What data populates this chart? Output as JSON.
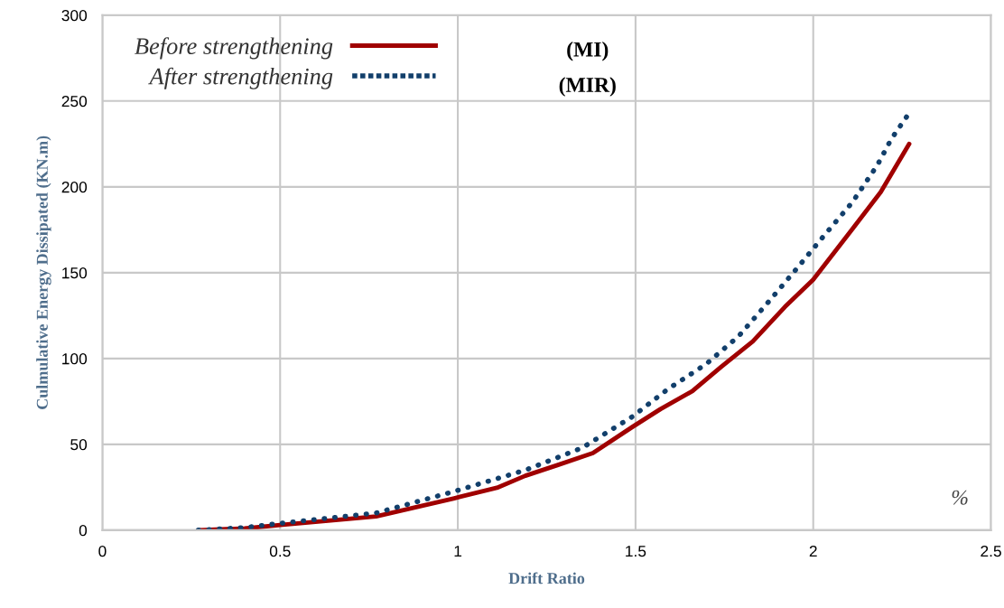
{
  "chart_data": {
    "type": "line",
    "xlabel": "Drift Ratio",
    "ylabel": "Culmulative Energy Dissipated (KN.m)",
    "xlim": [
      0,
      2.5
    ],
    "xticks": [
      0,
      0.5,
      1,
      1.5,
      2,
      2.5
    ],
    "ylim": [
      0,
      300
    ],
    "yticks": [
      0,
      50,
      100,
      150,
      200,
      250,
      300
    ],
    "grid": true,
    "legend": "top left",
    "annotations": [
      "(MI)",
      "(MIR)",
      "%"
    ],
    "series": [
      {
        "name": "Before strengthening",
        "color": "#a00000",
        "line_style": "solid",
        "x": [
          0.27,
          0.4,
          0.5,
          0.77,
          0.99,
          1.11,
          1.19,
          1.28,
          1.38,
          1.49,
          1.57,
          1.66,
          1.74,
          1.83,
          1.92,
          2.0,
          2.09,
          2.19,
          2.27
        ],
        "values": [
          0,
          1,
          3,
          8,
          18.6,
          24.7,
          31.7,
          37.9,
          44.9,
          60,
          70.5,
          81,
          95,
          110,
          130,
          146,
          170,
          197,
          225
        ]
      },
      {
        "name": "After strengthening",
        "color": "#123f6b",
        "line_style": "dotted",
        "x": [
          0.27,
          0.4,
          0.5,
          0.77,
          0.99,
          1.19,
          1.35,
          1.49,
          1.59,
          1.7,
          1.79,
          1.87,
          1.95,
          2.03,
          2.11,
          2.18,
          2.22,
          2.27
        ],
        "values": [
          0,
          1.5,
          4,
          10,
          22.6,
          35,
          48,
          66,
          82,
          97,
          113,
          132,
          151.5,
          171.5,
          191,
          212.5,
          228,
          243
        ]
      }
    ]
  }
}
